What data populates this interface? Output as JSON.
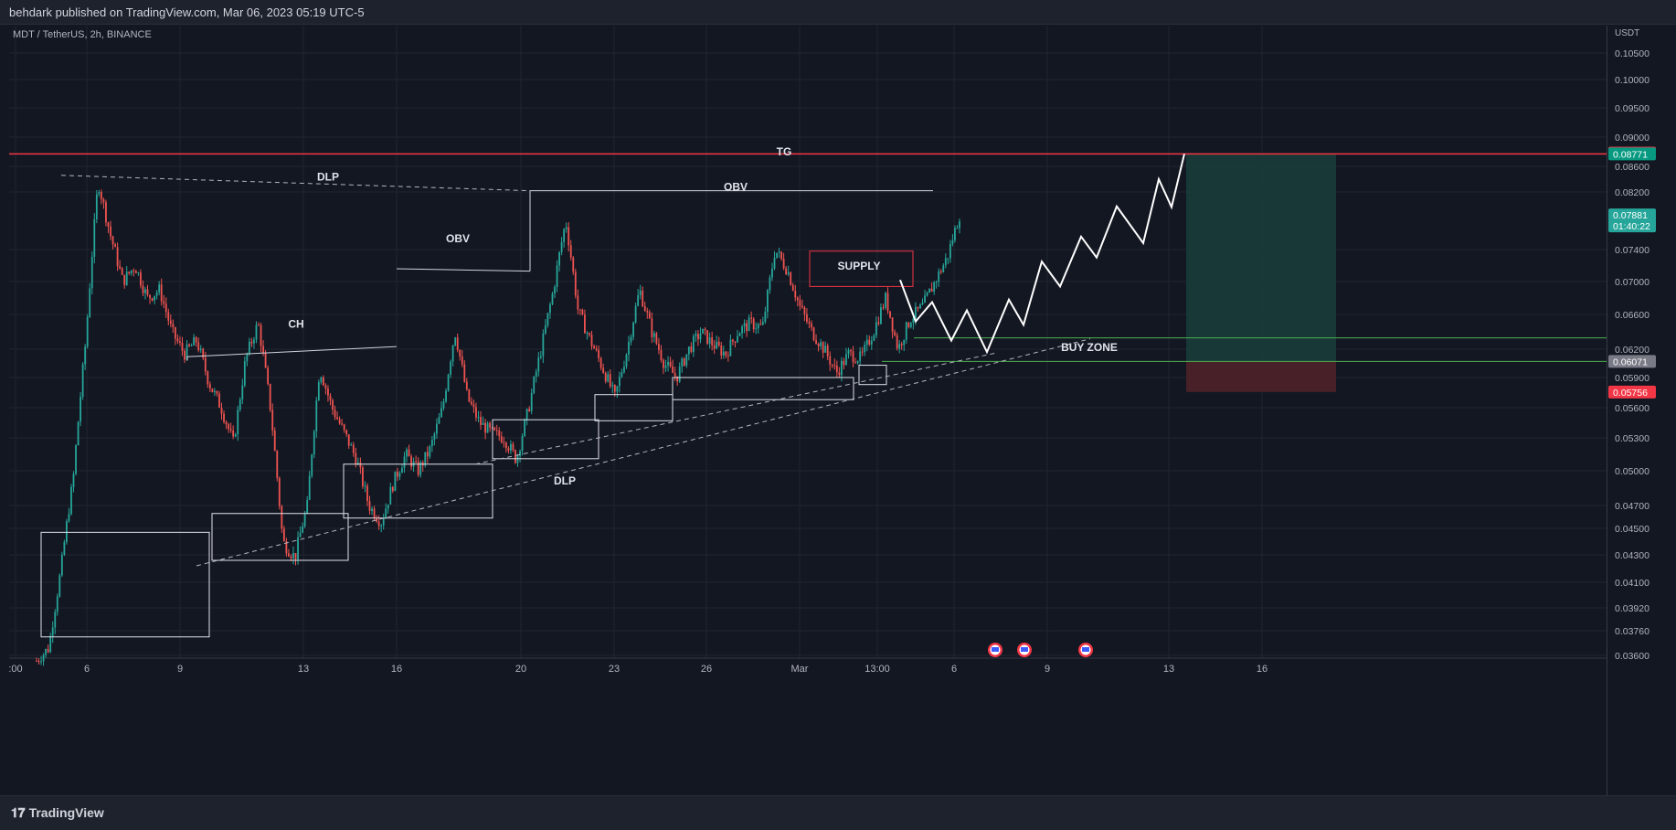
{
  "header": {
    "published": "behdark published on TradingView.com, Mar 06, 2023 05:19 UTC-5"
  },
  "symbol_info": "MDT / TetherUS, 2h, BINANCE",
  "footer": {
    "logo_text": "TradingView",
    "logo_icon": "tradingview-logo-icon"
  },
  "colors": {
    "background": "#131722",
    "grid": "#1f2430",
    "bull": "#26a69a",
    "bear": "#ef5350",
    "target_line": "#f23645",
    "buy_zone_line": "#4caf50",
    "profit_zone": "#1a3b3a",
    "loss_zone": "#4a2129",
    "annotation": "#e0e3eb"
  },
  "chart_data": {
    "type": "candlestick",
    "symbol": "MDT / TetherUS",
    "interval": "2h",
    "exchange": "BINANCE",
    "y_axis_unit": "USDT",
    "ylim": [
      0.0356,
      0.1085
    ],
    "y_ticks": [
      "0.10500",
      "0.10000",
      "0.09500",
      "0.09000",
      "0.08600",
      "0.08200",
      "0.07400",
      "0.07000",
      "0.06600",
      "0.06200",
      "0.05900",
      "0.05600",
      "0.05300",
      "0.05000",
      "0.04700",
      "0.04500",
      "0.04300",
      "0.04100",
      "0.03920",
      "0.03760",
      "0.03600"
    ],
    "x_ticks": [
      ":00",
      "6",
      "9",
      "13",
      "16",
      "20",
      "23",
      "26",
      "Mar",
      "13:00",
      "6",
      "9",
      "13",
      "16"
    ],
    "price_labels": [
      {
        "value": "0.08782",
        "role": "target",
        "color": "#f23645"
      },
      {
        "value": "0.08771",
        "role": "take-profit",
        "color": "#089981"
      },
      {
        "value": "0.07881",
        "role": "last-price",
        "countdown": "01:40:22",
        "color": "#26a69a"
      },
      {
        "value": "0.06071",
        "role": "entry",
        "color": "#787b86"
      },
      {
        "value": "0.05756",
        "role": "stop-loss",
        "color": "#f23645"
      }
    ],
    "annotations": [
      "TG",
      "DLP",
      "OBV",
      "OBV",
      "CH",
      "SUPPLY",
      "BUY ZONE",
      "DLP"
    ],
    "anchor_prices": [
      0.0356,
      0.0365,
      0.042,
      0.0495,
      0.063,
      0.0835,
      0.076,
      0.07,
      0.072,
      0.068,
      0.069,
      0.064,
      0.0615,
      0.063,
      0.0585,
      0.056,
      0.0525,
      0.061,
      0.065,
      0.056,
      0.044,
      0.0428,
      0.047,
      0.06,
      0.056,
      0.0535,
      0.051,
      0.047,
      0.0455,
      0.049,
      0.0515,
      0.05,
      0.052,
      0.056,
      0.064,
      0.057,
      0.0545,
      0.0535,
      0.053,
      0.051,
      0.056,
      0.062,
      0.069,
      0.078,
      0.0665,
      0.063,
      0.06,
      0.057,
      0.062,
      0.069,
      0.064,
      0.0605,
      0.059,
      0.062,
      0.064,
      0.0625,
      0.0615,
      0.064,
      0.065,
      0.0645,
      0.074,
      0.0715,
      0.067,
      0.064,
      0.062,
      0.0595,
      0.0615,
      0.061,
      0.064,
      0.068,
      0.062,
      0.0655,
      0.067,
      0.07,
      0.073,
      0.0788
    ]
  }
}
